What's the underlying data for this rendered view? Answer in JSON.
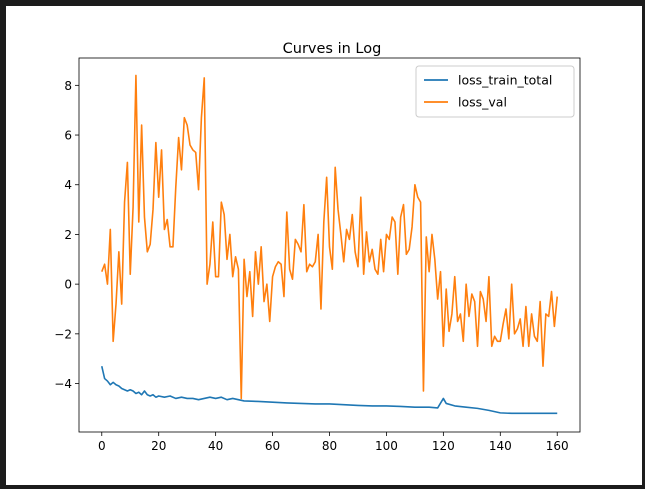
{
  "chart_data": {
    "type": "line",
    "title": "Curves in Log",
    "xlabel": "",
    "ylabel": "",
    "xlim": [
      -8,
      168
    ],
    "ylim": [
      -5.95,
      9.1
    ],
    "xticks": [
      0,
      20,
      40,
      60,
      80,
      100,
      120,
      140,
      160
    ],
    "yticks": [
      -4,
      -2,
      0,
      2,
      4,
      6,
      8
    ],
    "grid": false,
    "legend_position": "top-right",
    "colors": {
      "loss_train_total": "#1f77b4",
      "loss_val": "#ff7f0e"
    },
    "series": [
      {
        "name": "loss_train_total",
        "points": [
          [
            0,
            -3.3
          ],
          [
            1,
            -3.8
          ],
          [
            2,
            -3.9
          ],
          [
            3,
            -4.05
          ],
          [
            4,
            -3.95
          ],
          [
            5,
            -4.05
          ],
          [
            6,
            -4.1
          ],
          [
            7,
            -4.2
          ],
          [
            8,
            -4.25
          ],
          [
            9,
            -4.3
          ],
          [
            10,
            -4.25
          ],
          [
            11,
            -4.3
          ],
          [
            12,
            -4.4
          ],
          [
            13,
            -4.35
          ],
          [
            14,
            -4.45
          ],
          [
            15,
            -4.3
          ],
          [
            16,
            -4.45
          ],
          [
            17,
            -4.5
          ],
          [
            18,
            -4.45
          ],
          [
            19,
            -4.55
          ],
          [
            20,
            -4.5
          ],
          [
            22,
            -4.55
          ],
          [
            24,
            -4.5
          ],
          [
            26,
            -4.6
          ],
          [
            28,
            -4.55
          ],
          [
            30,
            -4.6
          ],
          [
            32,
            -4.6
          ],
          [
            34,
            -4.65
          ],
          [
            36,
            -4.6
          ],
          [
            38,
            -4.55
          ],
          [
            40,
            -4.6
          ],
          [
            42,
            -4.55
          ],
          [
            44,
            -4.65
          ],
          [
            46,
            -4.6
          ],
          [
            48,
            -4.65
          ],
          [
            50,
            -4.7
          ],
          [
            55,
            -4.72
          ],
          [
            60,
            -4.75
          ],
          [
            65,
            -4.78
          ],
          [
            70,
            -4.8
          ],
          [
            75,
            -4.82
          ],
          [
            80,
            -4.82
          ],
          [
            85,
            -4.85
          ],
          [
            90,
            -4.88
          ],
          [
            95,
            -4.9
          ],
          [
            100,
            -4.9
          ],
          [
            105,
            -4.92
          ],
          [
            110,
            -4.95
          ],
          [
            115,
            -4.95
          ],
          [
            118,
            -4.98
          ],
          [
            120,
            -4.6
          ],
          [
            121,
            -4.8
          ],
          [
            124,
            -4.9
          ],
          [
            128,
            -4.95
          ],
          [
            132,
            -5.0
          ],
          [
            136,
            -5.08
          ],
          [
            140,
            -5.18
          ],
          [
            144,
            -5.2
          ],
          [
            150,
            -5.2
          ],
          [
            155,
            -5.2
          ],
          [
            160,
            -5.2
          ]
        ]
      },
      {
        "name": "loss_val",
        "points": [
          [
            0,
            0.5
          ],
          [
            1,
            0.8
          ],
          [
            2,
            0.0
          ],
          [
            3,
            2.2
          ],
          [
            4,
            -2.3
          ],
          [
            5,
            -0.8
          ],
          [
            6,
            1.3
          ],
          [
            7,
            -0.8
          ],
          [
            8,
            3.3
          ],
          [
            9,
            4.9
          ],
          [
            10,
            0.4
          ],
          [
            11,
            3.1
          ],
          [
            12,
            8.4
          ],
          [
            13,
            2.5
          ],
          [
            14,
            6.4
          ],
          [
            15,
            2.7
          ],
          [
            16,
            1.3
          ],
          [
            17,
            1.6
          ],
          [
            18,
            3.0
          ],
          [
            19,
            5.7
          ],
          [
            20,
            3.5
          ],
          [
            21,
            5.4
          ],
          [
            22,
            2.2
          ],
          [
            23,
            2.6
          ],
          [
            24,
            1.5
          ],
          [
            25,
            1.5
          ],
          [
            26,
            3.9
          ],
          [
            27,
            5.9
          ],
          [
            28,
            4.6
          ],
          [
            29,
            6.7
          ],
          [
            30,
            6.4
          ],
          [
            31,
            5.6
          ],
          [
            32,
            5.4
          ],
          [
            33,
            5.3
          ],
          [
            34,
            3.8
          ],
          [
            35,
            6.7
          ],
          [
            36,
            8.3
          ],
          [
            37,
            0.0
          ],
          [
            38,
            0.8
          ],
          [
            39,
            2.5
          ],
          [
            40,
            0.3
          ],
          [
            41,
            0.3
          ],
          [
            42,
            3.3
          ],
          [
            43,
            2.8
          ],
          [
            44,
            1.0
          ],
          [
            45,
            2.0
          ],
          [
            46,
            0.3
          ],
          [
            47,
            1.1
          ],
          [
            48,
            0.6
          ],
          [
            49,
            -4.6
          ],
          [
            50,
            1.0
          ],
          [
            51,
            -0.5
          ],
          [
            52,
            0.5
          ],
          [
            53,
            -1.3
          ],
          [
            54,
            1.3
          ],
          [
            55,
            0.0
          ],
          [
            56,
            1.5
          ],
          [
            57,
            -0.7
          ],
          [
            58,
            0.0
          ],
          [
            59,
            -1.5
          ],
          [
            60,
            0.3
          ],
          [
            61,
            0.7
          ],
          [
            62,
            0.9
          ],
          [
            63,
            0.8
          ],
          [
            64,
            -0.5
          ],
          [
            65,
            2.9
          ],
          [
            66,
            0.6
          ],
          [
            67,
            0.2
          ],
          [
            68,
            1.8
          ],
          [
            69,
            1.6
          ],
          [
            70,
            1.3
          ],
          [
            71,
            3.2
          ],
          [
            72,
            0.5
          ],
          [
            73,
            0.8
          ],
          [
            74,
            0.7
          ],
          [
            75,
            0.9
          ],
          [
            76,
            2.0
          ],
          [
            77,
            -1.0
          ],
          [
            78,
            2.5
          ],
          [
            79,
            4.3
          ],
          [
            80,
            1.5
          ],
          [
            81,
            0.6
          ],
          [
            82,
            4.7
          ],
          [
            83,
            3.0
          ],
          [
            84,
            2.0
          ],
          [
            85,
            0.9
          ],
          [
            86,
            2.2
          ],
          [
            87,
            1.8
          ],
          [
            88,
            2.8
          ],
          [
            89,
            1.3
          ],
          [
            90,
            0.7
          ],
          [
            91,
            3.5
          ],
          [
            92,
            0.4
          ],
          [
            93,
            2.1
          ],
          [
            94,
            0.9
          ],
          [
            95,
            1.4
          ],
          [
            96,
            0.6
          ],
          [
            97,
            0.4
          ],
          [
            98,
            1.8
          ],
          [
            99,
            0.5
          ],
          [
            100,
            2.0
          ],
          [
            101,
            1.8
          ],
          [
            102,
            2.7
          ],
          [
            103,
            2.5
          ],
          [
            104,
            0.4
          ],
          [
            105,
            2.7
          ],
          [
            106,
            3.2
          ],
          [
            107,
            1.2
          ],
          [
            108,
            1.4
          ],
          [
            109,
            2.3
          ],
          [
            110,
            4.0
          ],
          [
            111,
            3.5
          ],
          [
            112,
            3.3
          ],
          [
            113,
            -4.3
          ],
          [
            114,
            1.9
          ],
          [
            115,
            0.5
          ],
          [
            116,
            2.0
          ],
          [
            117,
            1.0
          ],
          [
            118,
            -0.6
          ],
          [
            119,
            0.5
          ],
          [
            120,
            -2.5
          ],
          [
            121,
            -0.2
          ],
          [
            122,
            -1.9
          ],
          [
            123,
            -1.2
          ],
          [
            124,
            0.3
          ],
          [
            125,
            -1.5
          ],
          [
            126,
            -1.2
          ],
          [
            127,
            -2.3
          ],
          [
            128,
            0.0
          ],
          [
            129,
            -1.3
          ],
          [
            130,
            -0.4
          ],
          [
            131,
            -0.7
          ],
          [
            132,
            -2.5
          ],
          [
            133,
            -0.3
          ],
          [
            134,
            -0.6
          ],
          [
            135,
            -1.5
          ],
          [
            136,
            0.3
          ],
          [
            137,
            -2.5
          ],
          [
            138,
            -2.1
          ],
          [
            139,
            -2.3
          ],
          [
            140,
            -2.3
          ],
          [
            141,
            -1.6
          ],
          [
            142,
            -1.0
          ],
          [
            143,
            -2.2
          ],
          [
            144,
            0.0
          ],
          [
            145,
            -2.0
          ],
          [
            146,
            -1.8
          ],
          [
            147,
            -1.4
          ],
          [
            148,
            -2.5
          ],
          [
            149,
            -0.9
          ],
          [
            150,
            -2.5
          ],
          [
            151,
            -1.2
          ],
          [
            152,
            -2.1
          ],
          [
            153,
            -2.3
          ],
          [
            154,
            -0.7
          ],
          [
            155,
            -3.3
          ],
          [
            156,
            -1.2
          ],
          [
            157,
            -1.3
          ],
          [
            158,
            -0.3
          ],
          [
            159,
            -1.7
          ],
          [
            160,
            -0.5
          ]
        ]
      }
    ]
  }
}
